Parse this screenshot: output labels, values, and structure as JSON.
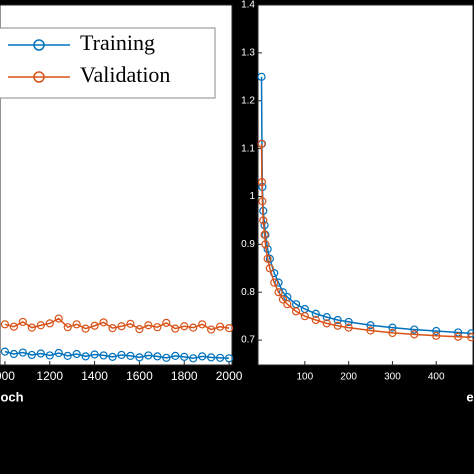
{
  "chart_data": [
    {
      "type": "line",
      "x_label": "och",
      "xlim": [
        978,
        2013
      ],
      "ylim": [
        0.648,
        1.4
      ],
      "xticks": [
        {
          "value": 1000,
          "label": "000"
        },
        1200,
        1400,
        1600,
        1800,
        2000
      ],
      "legend": "top-left",
      "x": [
        1000,
        1040,
        1080,
        1120,
        1160,
        1200,
        1240,
        1280,
        1320,
        1360,
        1400,
        1440,
        1480,
        1520,
        1560,
        1600,
        1640,
        1680,
        1720,
        1760,
        1800,
        1840,
        1880,
        1920,
        1960,
        2000
      ],
      "series": [
        {
          "name": "Training",
          "color": "#0072bd",
          "values": [
            0.676,
            0.671,
            0.674,
            0.669,
            0.672,
            0.668,
            0.673,
            0.667,
            0.671,
            0.666,
            0.67,
            0.668,
            0.665,
            0.669,
            0.667,
            0.664,
            0.668,
            0.666,
            0.663,
            0.667,
            0.665,
            0.662,
            0.666,
            0.664,
            0.663,
            0.662
          ]
        },
        {
          "name": "Validation",
          "color": "#d95319",
          "values": [
            0.733,
            0.728,
            0.738,
            0.726,
            0.731,
            0.735,
            0.745,
            0.727,
            0.733,
            0.724,
            0.73,
            0.737,
            0.725,
            0.729,
            0.734,
            0.723,
            0.731,
            0.727,
            0.736,
            0.724,
            0.729,
            0.726,
            0.733,
            0.722,
            0.728,
            0.725
          ]
        }
      ]
    },
    {
      "type": "line",
      "x_label": "e",
      "xlim": [
        -7,
        484
      ],
      "ylim": [
        0.648,
        1.4
      ],
      "xticks": [
        100,
        200,
        300,
        400
      ],
      "yticks": [
        0.7,
        0.8,
        0.9,
        1,
        1.1,
        1.2,
        1.3,
        1.4
      ],
      "x": [
        1,
        2,
        3,
        5,
        8,
        10,
        15,
        20,
        30,
        40,
        50,
        60,
        80,
        100,
        125,
        150,
        175,
        200,
        250,
        300,
        350,
        400,
        450,
        480
      ],
      "series": [
        {
          "name": "Training",
          "color": "#0072bd",
          "values": [
            1.25,
            1.11,
            1.02,
            0.97,
            0.94,
            0.92,
            0.89,
            0.87,
            0.84,
            0.82,
            0.8,
            0.79,
            0.775,
            0.765,
            0.755,
            0.748,
            0.742,
            0.738,
            0.731,
            0.726,
            0.722,
            0.719,
            0.716,
            0.714
          ]
        },
        {
          "name": "Validation",
          "color": "#d95319",
          "values": [
            1.11,
            1.03,
            0.99,
            0.95,
            0.92,
            0.9,
            0.87,
            0.85,
            0.82,
            0.8,
            0.785,
            0.775,
            0.76,
            0.75,
            0.742,
            0.735,
            0.73,
            0.726,
            0.72,
            0.715,
            0.712,
            0.709,
            0.707,
            0.706
          ]
        }
      ]
    }
  ]
}
